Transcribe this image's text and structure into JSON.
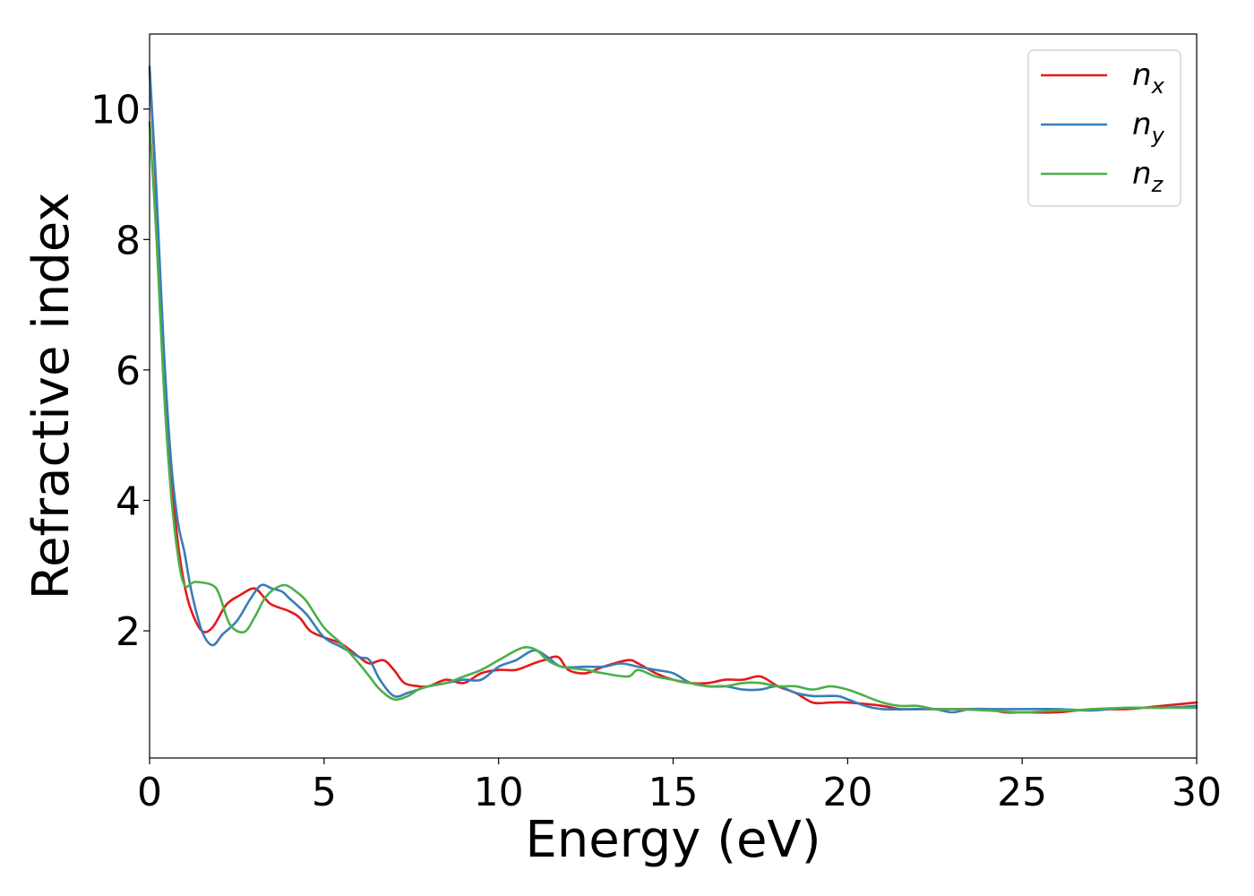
{
  "chart_data": {
    "type": "line",
    "xlabel": "Energy (eV)",
    "ylabel": "Refractive index",
    "xlim": [
      0,
      30
    ],
    "ylim": [
      0.05,
      11.15
    ],
    "xticks": [
      0,
      5,
      10,
      15,
      20,
      25,
      30
    ],
    "yticks": [
      2,
      4,
      6,
      8,
      10
    ],
    "grid": false,
    "legend_position": "top-right",
    "series": [
      {
        "name": "n",
        "subscript": "x",
        "color": "#e41a1c",
        "points": [
          [
            0,
            10.6
          ],
          [
            0.2,
            8.6
          ],
          [
            0.4,
            6.2
          ],
          [
            0.6,
            4.5
          ],
          [
            0.8,
            3.4
          ],
          [
            1.0,
            2.7
          ],
          [
            1.2,
            2.3
          ],
          [
            1.5,
            2.0
          ],
          [
            1.8,
            2.05
          ],
          [
            2.2,
            2.4
          ],
          [
            2.6,
            2.55
          ],
          [
            3.0,
            2.65
          ],
          [
            3.3,
            2.5
          ],
          [
            3.5,
            2.4
          ],
          [
            4.0,
            2.3
          ],
          [
            4.3,
            2.2
          ],
          [
            4.6,
            2.0
          ],
          [
            5.0,
            1.9
          ],
          [
            5.5,
            1.8
          ],
          [
            6.0,
            1.6
          ],
          [
            6.3,
            1.5
          ],
          [
            6.7,
            1.55
          ],
          [
            7.0,
            1.4
          ],
          [
            7.3,
            1.2
          ],
          [
            7.7,
            1.15
          ],
          [
            8.0,
            1.15
          ],
          [
            8.5,
            1.25
          ],
          [
            9.0,
            1.2
          ],
          [
            9.5,
            1.35
          ],
          [
            10.0,
            1.4
          ],
          [
            10.5,
            1.4
          ],
          [
            11.0,
            1.5
          ],
          [
            11.3,
            1.55
          ],
          [
            11.7,
            1.6
          ],
          [
            12.0,
            1.4
          ],
          [
            12.5,
            1.35
          ],
          [
            13.0,
            1.45
          ],
          [
            13.7,
            1.55
          ],
          [
            14.0,
            1.5
          ],
          [
            14.5,
            1.35
          ],
          [
            15.0,
            1.25
          ],
          [
            15.5,
            1.2
          ],
          [
            16.0,
            1.2
          ],
          [
            16.5,
            1.25
          ],
          [
            17.0,
            1.25
          ],
          [
            17.5,
            1.3
          ],
          [
            18.0,
            1.15
          ],
          [
            18.5,
            1.05
          ],
          [
            19.0,
            0.9
          ],
          [
            19.5,
            0.9
          ],
          [
            20.0,
            0.9
          ],
          [
            21.0,
            0.85
          ],
          [
            21.5,
            0.8
          ],
          [
            22.0,
            0.8
          ],
          [
            23.0,
            0.8
          ],
          [
            23.5,
            0.8
          ],
          [
            24.0,
            0.8
          ],
          [
            24.5,
            0.75
          ],
          [
            25.0,
            0.75
          ],
          [
            26.0,
            0.75
          ],
          [
            27.0,
            0.8
          ],
          [
            28.0,
            0.8
          ],
          [
            29.0,
            0.85
          ],
          [
            30.0,
            0.9
          ]
        ]
      },
      {
        "name": "n",
        "subscript": "y",
        "color": "#377eb8",
        "points": [
          [
            0,
            10.65
          ],
          [
            0.2,
            8.7
          ],
          [
            0.4,
            6.4
          ],
          [
            0.6,
            4.7
          ],
          [
            0.8,
            3.7
          ],
          [
            1.0,
            3.2
          ],
          [
            1.2,
            2.6
          ],
          [
            1.5,
            2.0
          ],
          [
            1.8,
            1.78
          ],
          [
            2.1,
            1.95
          ],
          [
            2.5,
            2.15
          ],
          [
            2.9,
            2.5
          ],
          [
            3.2,
            2.7
          ],
          [
            3.5,
            2.65
          ],
          [
            3.8,
            2.6
          ],
          [
            4.0,
            2.5
          ],
          [
            4.5,
            2.25
          ],
          [
            5.0,
            1.9
          ],
          [
            5.5,
            1.75
          ],
          [
            6.0,
            1.6
          ],
          [
            6.3,
            1.55
          ],
          [
            6.6,
            1.25
          ],
          [
            7.0,
            1.0
          ],
          [
            7.4,
            1.05
          ],
          [
            7.7,
            1.1
          ],
          [
            8.0,
            1.15
          ],
          [
            8.5,
            1.2
          ],
          [
            9.0,
            1.25
          ],
          [
            9.5,
            1.25
          ],
          [
            10.0,
            1.45
          ],
          [
            10.5,
            1.55
          ],
          [
            11.0,
            1.7
          ],
          [
            11.4,
            1.6
          ],
          [
            11.8,
            1.45
          ],
          [
            12.5,
            1.45
          ],
          [
            13.0,
            1.45
          ],
          [
            13.5,
            1.5
          ],
          [
            14.0,
            1.45
          ],
          [
            14.5,
            1.4
          ],
          [
            15.0,
            1.35
          ],
          [
            15.5,
            1.2
          ],
          [
            16.0,
            1.15
          ],
          [
            16.5,
            1.15
          ],
          [
            17.0,
            1.1
          ],
          [
            17.5,
            1.1
          ],
          [
            18.0,
            1.15
          ],
          [
            18.5,
            1.05
          ],
          [
            19.0,
            1.0
          ],
          [
            19.7,
            1.0
          ],
          [
            20.0,
            0.95
          ],
          [
            20.5,
            0.85
          ],
          [
            21.0,
            0.8
          ],
          [
            22.0,
            0.8
          ],
          [
            22.5,
            0.8
          ],
          [
            23.0,
            0.75
          ],
          [
            23.5,
            0.8
          ],
          [
            24.0,
            0.8
          ],
          [
            24.5,
            0.8
          ],
          [
            25.0,
            0.8
          ],
          [
            26.0,
            0.8
          ],
          [
            27.0,
            0.78
          ],
          [
            28.0,
            0.82
          ],
          [
            29.0,
            0.82
          ],
          [
            30.0,
            0.85
          ]
        ]
      },
      {
        "name": "n",
        "subscript": "z",
        "color": "#4daf4a",
        "points": [
          [
            0,
            9.8
          ],
          [
            0.2,
            8.0
          ],
          [
            0.4,
            5.8
          ],
          [
            0.6,
            4.2
          ],
          [
            0.8,
            3.2
          ],
          [
            1.0,
            2.7
          ],
          [
            1.3,
            2.75
          ],
          [
            1.8,
            2.7
          ],
          [
            2.0,
            2.55
          ],
          [
            2.3,
            2.1
          ],
          [
            2.7,
            1.98
          ],
          [
            3.0,
            2.2
          ],
          [
            3.3,
            2.5
          ],
          [
            3.6,
            2.65
          ],
          [
            3.9,
            2.7
          ],
          [
            4.2,
            2.6
          ],
          [
            4.5,
            2.45
          ],
          [
            5.0,
            2.05
          ],
          [
            5.5,
            1.8
          ],
          [
            6.0,
            1.5
          ],
          [
            6.3,
            1.3
          ],
          [
            6.6,
            1.1
          ],
          [
            7.0,
            0.95
          ],
          [
            7.4,
            1.0
          ],
          [
            7.7,
            1.1
          ],
          [
            8.0,
            1.15
          ],
          [
            8.5,
            1.2
          ],
          [
            9.0,
            1.3
          ],
          [
            9.5,
            1.4
          ],
          [
            10.0,
            1.55
          ],
          [
            10.5,
            1.7
          ],
          [
            10.8,
            1.75
          ],
          [
            11.1,
            1.7
          ],
          [
            11.4,
            1.55
          ],
          [
            11.8,
            1.45
          ],
          [
            12.5,
            1.4
          ],
          [
            13.0,
            1.35
          ],
          [
            13.7,
            1.3
          ],
          [
            14.0,
            1.4
          ],
          [
            14.5,
            1.3
          ],
          [
            15.0,
            1.25
          ],
          [
            15.5,
            1.2
          ],
          [
            16.0,
            1.15
          ],
          [
            16.5,
            1.15
          ],
          [
            17.0,
            1.2
          ],
          [
            17.5,
            1.2
          ],
          [
            18.0,
            1.15
          ],
          [
            18.5,
            1.15
          ],
          [
            19.0,
            1.1
          ],
          [
            19.5,
            1.15
          ],
          [
            20.0,
            1.1
          ],
          [
            20.5,
            1.0
          ],
          [
            21.0,
            0.9
          ],
          [
            21.5,
            0.85
          ],
          [
            22.0,
            0.85
          ],
          [
            22.5,
            0.8
          ],
          [
            23.0,
            0.8
          ],
          [
            24.0,
            0.78
          ],
          [
            25.0,
            0.75
          ],
          [
            26.0,
            0.78
          ],
          [
            26.5,
            0.78
          ],
          [
            27.0,
            0.8
          ],
          [
            28.0,
            0.82
          ],
          [
            29.0,
            0.82
          ],
          [
            30.0,
            0.82
          ]
        ]
      }
    ]
  }
}
